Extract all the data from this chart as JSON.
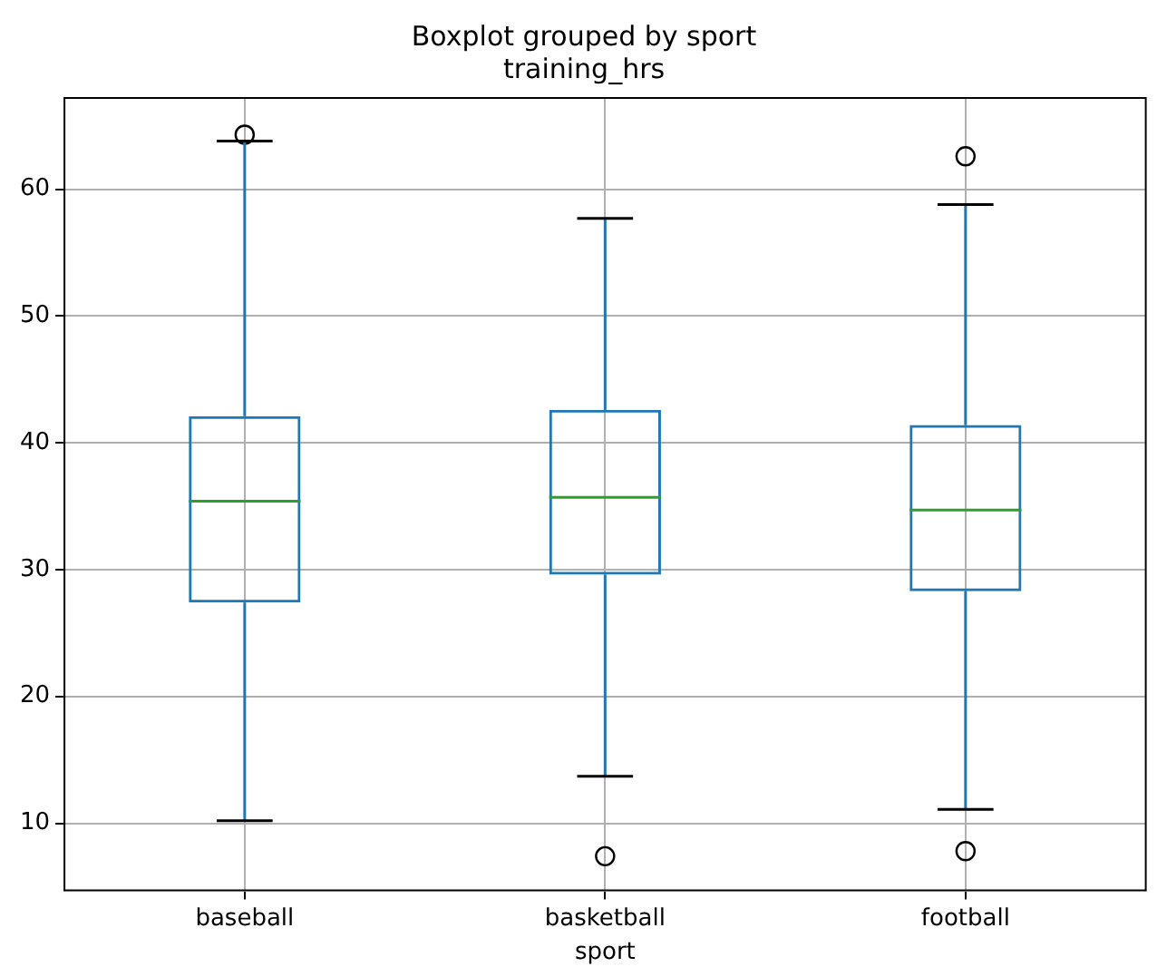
{
  "chart_data": {
    "type": "box",
    "title": "Boxplot grouped by sport\ntraining_hrs",
    "xlabel": "sport",
    "categories": [
      "baseball",
      "basketball",
      "football"
    ],
    "color": "#1f77b4",
    "boxes": [
      {
        "low": 10.2,
        "q1": 27.4,
        "median": 35.4,
        "q3": 42.1,
        "high": 63.8,
        "outliers": [
          64.3
        ]
      },
      {
        "low": 13.7,
        "q1": 29.6,
        "median": 35.7,
        "q3": 42.6,
        "high": 57.7,
        "outliers": [
          7.4
        ]
      },
      {
        "low": 11.1,
        "q1": 28.3,
        "median": 34.7,
        "q3": 41.4,
        "high": 58.8,
        "outliers": [
          62.6,
          7.8
        ]
      }
    ],
    "ylim": [
      4.7,
      67.2
    ],
    "yticks": [
      10,
      20,
      30,
      40,
      50,
      60
    ],
    "grid": true,
    "legend": false
  }
}
